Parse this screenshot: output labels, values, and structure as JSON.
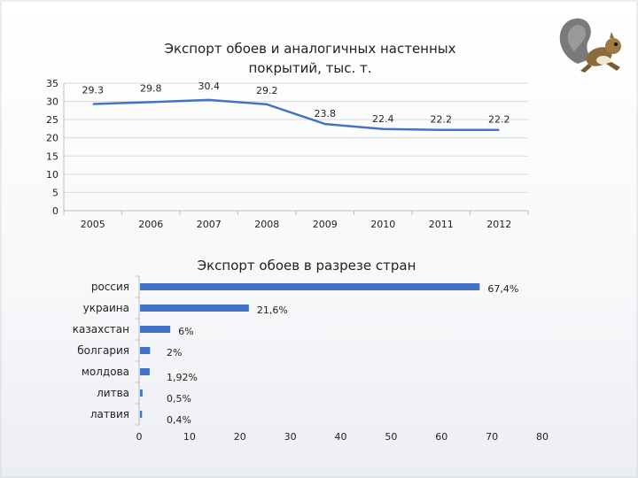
{
  "chart_data": [
    {
      "type": "line",
      "title_lines": [
        "Экспорт обоев и аналогичных настенных",
        "покрытий, тыс. т."
      ],
      "categories": [
        "2005",
        "2006",
        "2007",
        "2008",
        "2009",
        "2010",
        "2011",
        "2012"
      ],
      "values": [
        29.3,
        29.8,
        30.4,
        29.2,
        23.8,
        22.4,
        22.2,
        22.2
      ],
      "data_labels": [
        "29.3",
        "29.8",
        "30.4",
        "29.2",
        "23.8",
        "22.4",
        "22.2",
        "22.2"
      ],
      "y_ticks": [
        "0",
        "5",
        "10",
        "15",
        "20",
        "25",
        "30",
        "35"
      ],
      "ylim": [
        0,
        35
      ],
      "grid": true,
      "legend": "none",
      "color": "#4472c4"
    },
    {
      "type": "bar",
      "orientation": "horizontal",
      "title": "Экспорт обоев в разрезе стран",
      "categories": [
        "россия",
        "украина",
        "казахстан",
        "болгария",
        "молдова",
        "литва",
        "латвия"
      ],
      "values": [
        67.4,
        21.6,
        6,
        2,
        1.92,
        0.5,
        0.4
      ],
      "data_labels": [
        "67,4%",
        "21,6%",
        "6%",
        "2%",
        "1,92%",
        "0,5%",
        "0,4%"
      ],
      "x_ticks": [
        "0",
        "10",
        "20",
        "30",
        "40",
        "50",
        "60",
        "70",
        "80"
      ],
      "xlim": [
        0,
        80
      ],
      "grid": false,
      "legend": "none",
      "color": "#4472c4"
    }
  ],
  "decor": {
    "mascot": "squirrel-mascot-icon",
    "frame_color": "#d6d9df"
  }
}
